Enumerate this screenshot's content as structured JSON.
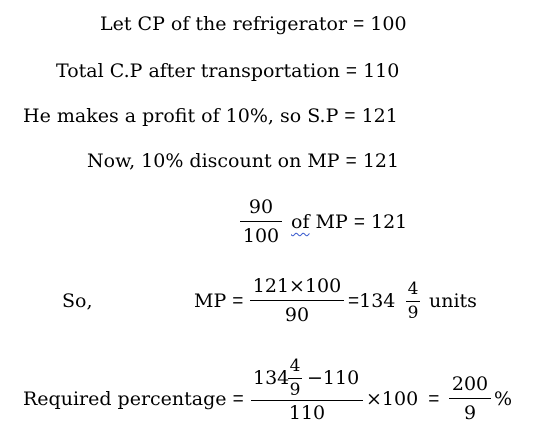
{
  "lines": {
    "l1": {
      "text": "Let CP of the refrigerator",
      "eq": "=",
      "value": "100"
    },
    "l2": {
      "text": "Total C.P after transportation",
      "eq": "=",
      "value": "110"
    },
    "l3": {
      "text": "He makes a profit of 10%, so S.P",
      "eq": "=",
      "value": "121"
    },
    "l4": {
      "text": "Now, 10% discount on MP",
      "eq": "=",
      "value": "121"
    },
    "l5": {
      "num": "90",
      "den": "100",
      "of": "of",
      "text": "MP",
      "eq": "=",
      "value": "121"
    },
    "l6": {
      "so": "So,",
      "mp": "MP",
      "eq": "=",
      "num": "121×100",
      "den": "90",
      "eq2": "=",
      "whole": "134",
      "fnum": "4",
      "fden": "9",
      "units": "units"
    },
    "l7": {
      "label": "Required percentage",
      "eq": "=",
      "whole": "134",
      "fnum": "4",
      "fden": "9",
      "minus": "−110",
      "den": "110",
      "times": "×100",
      "eq2": "=",
      "rnum": "200",
      "rden": "9",
      "pct": "%"
    }
  }
}
